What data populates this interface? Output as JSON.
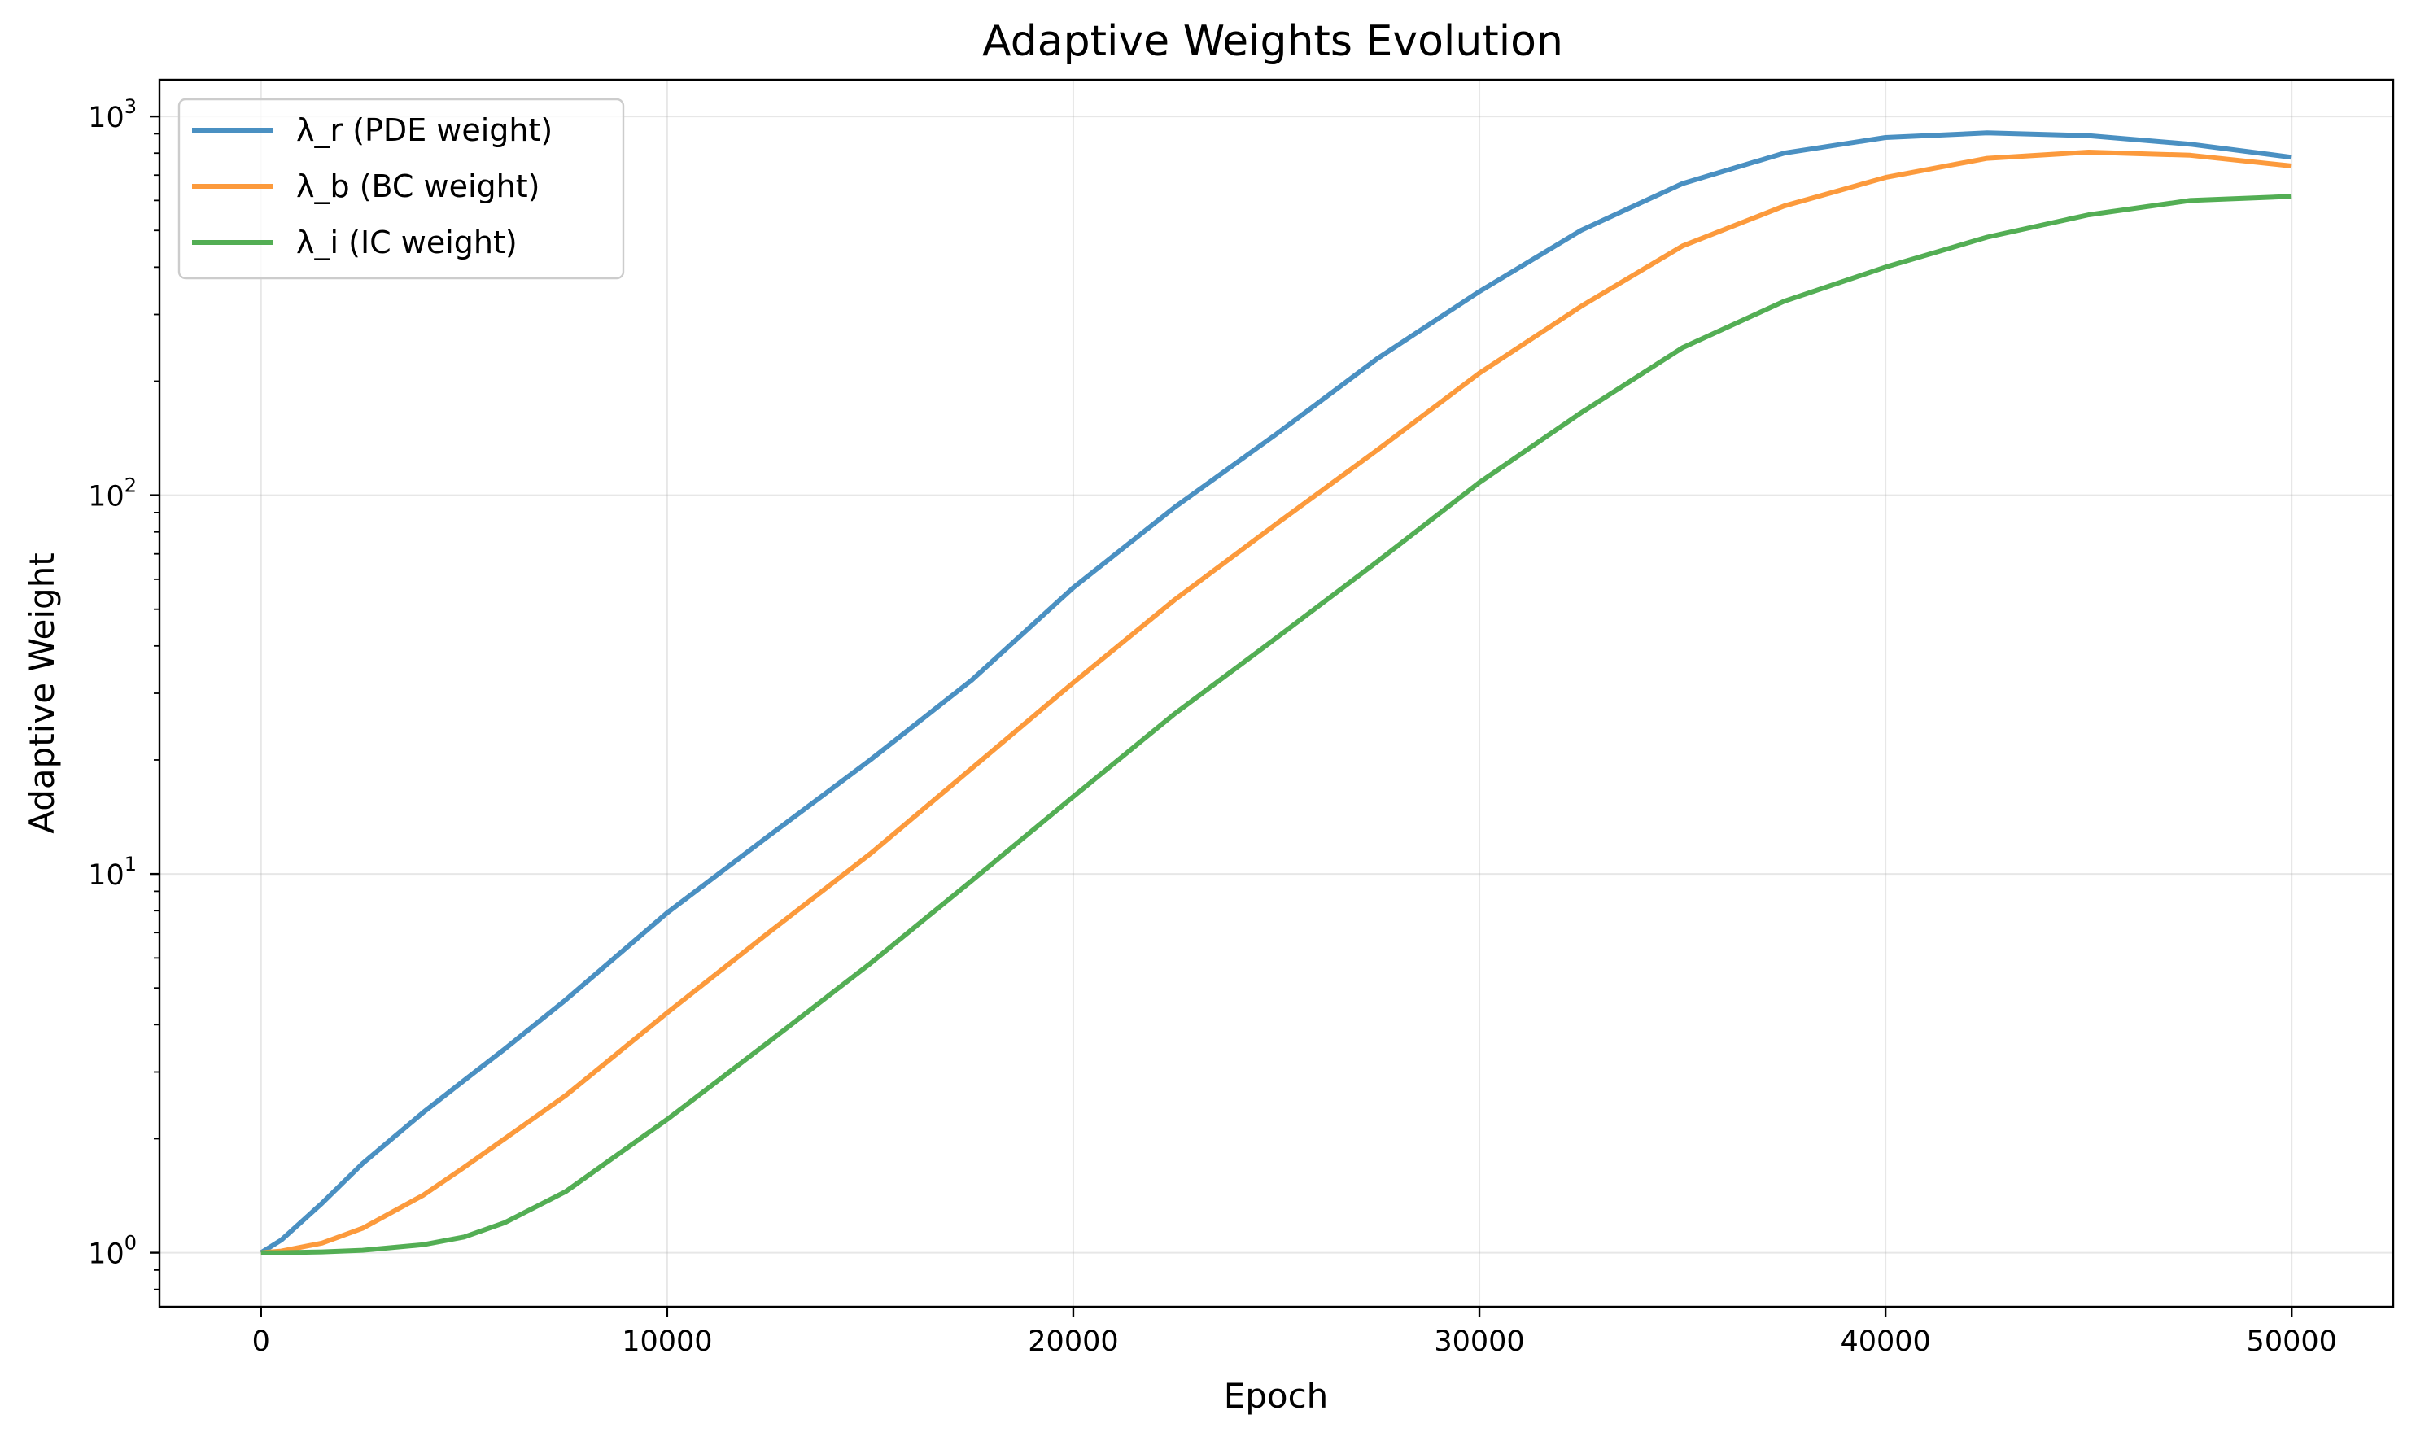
{
  "chart_data": {
    "type": "line",
    "title": "Adaptive Weights Evolution",
    "xlabel": "Epoch",
    "ylabel": "Adaptive Weight",
    "yscale": "log",
    "xlim": [
      -2500,
      52500
    ],
    "ylim": [
      0.72,
      1250
    ],
    "grid": true,
    "legend_position": "upper-left",
    "x_ticks": [
      {
        "value": 0,
        "label": "0"
      },
      {
        "value": 10000,
        "label": "10000"
      },
      {
        "value": 20000,
        "label": "20000"
      },
      {
        "value": 30000,
        "label": "30000"
      },
      {
        "value": 40000,
        "label": "40000"
      },
      {
        "value": 50000,
        "label": "50000"
      }
    ],
    "y_ticks": [
      {
        "value": 1,
        "base": "10",
        "exp": "0"
      },
      {
        "value": 10,
        "base": "10",
        "exp": "1"
      },
      {
        "value": 100,
        "base": "10",
        "exp": "2"
      },
      {
        "value": 1000,
        "base": "10",
        "exp": "3"
      }
    ],
    "x": [
      0,
      500,
      1500,
      2500,
      4000,
      5000,
      6000,
      7500,
      10000,
      12500,
      15000,
      17500,
      20000,
      22500,
      25000,
      27500,
      30000,
      32500,
      35000,
      37500,
      40000,
      42500,
      45000,
      47500,
      50000
    ],
    "series": [
      {
        "name": "λ_r (PDE weight)",
        "color": "#4a90c2",
        "values": [
          1.0,
          1.08,
          1.35,
          1.72,
          2.35,
          2.85,
          3.45,
          4.65,
          7.9,
          12.6,
          20.0,
          32.5,
          57,
          93,
          145,
          230,
          345,
          500,
          665,
          800,
          880,
          905,
          890,
          845,
          780
        ]
      },
      {
        "name": "λ_b (BC weight)",
        "color": "#fc9a3c",
        "values": [
          1.0,
          1.01,
          1.06,
          1.16,
          1.42,
          1.68,
          2.0,
          2.6,
          4.3,
          7.0,
          11.3,
          19.0,
          32,
          53,
          84,
          132,
          210,
          315,
          455,
          580,
          690,
          775,
          805,
          790,
          740
        ]
      },
      {
        "name": "λ_i (IC weight)",
        "color": "#53ae54",
        "values": [
          1.0,
          1.0,
          1.005,
          1.015,
          1.05,
          1.1,
          1.2,
          1.45,
          2.25,
          3.6,
          5.8,
          9.6,
          16.0,
          26.5,
          42,
          67,
          108,
          165,
          245,
          325,
          400,
          480,
          550,
          600,
          615
        ]
      }
    ]
  }
}
